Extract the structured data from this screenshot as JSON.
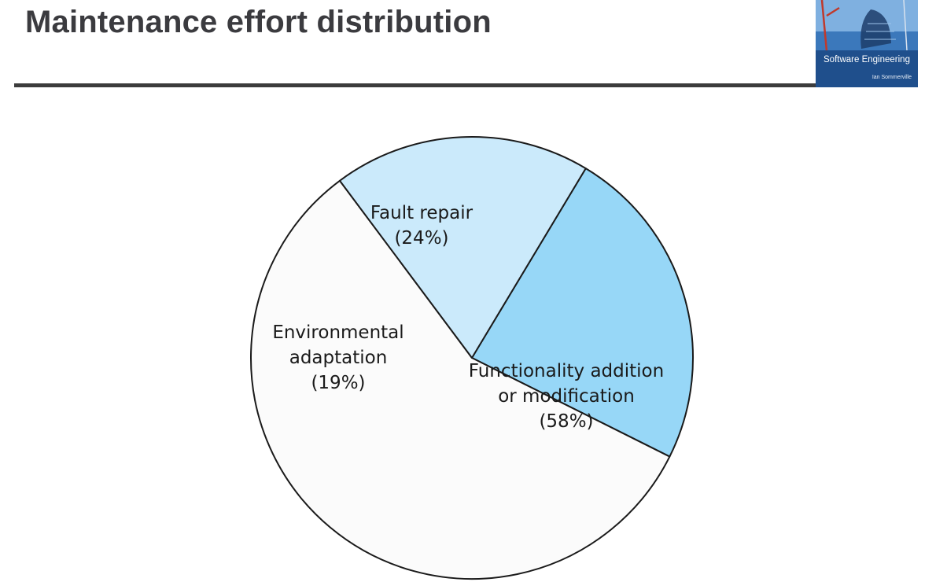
{
  "slide": {
    "title": "Maintenance effort distribution"
  },
  "book_cover": {
    "title": "Software Engineering",
    "author": "Ian Sommerville"
  },
  "chart_data": {
    "type": "pie",
    "title": "",
    "slices": [
      {
        "label_lines": [
          "Fault repair",
          "(24%)"
        ],
        "label": "Fault repair",
        "percent_label": "(24%)",
        "value": 24,
        "color": "#97d7f7"
      },
      {
        "label_lines": [
          "Functionality addition",
          "or modification",
          "(58%)"
        ],
        "label": "Functionality addition or modification",
        "percent_label": "(58%)",
        "value": 58,
        "color": "#fbfbfb"
      },
      {
        "label_lines": [
          "Environmental",
          "adaptation",
          "(19%)"
        ],
        "label": "Environmental adaptation",
        "percent_label": "(19%)",
        "value": 19,
        "color": "#cbeafb"
      }
    ],
    "start_angle_deg": 301,
    "outline_color": "#1a1a1a",
    "legend": "none"
  }
}
